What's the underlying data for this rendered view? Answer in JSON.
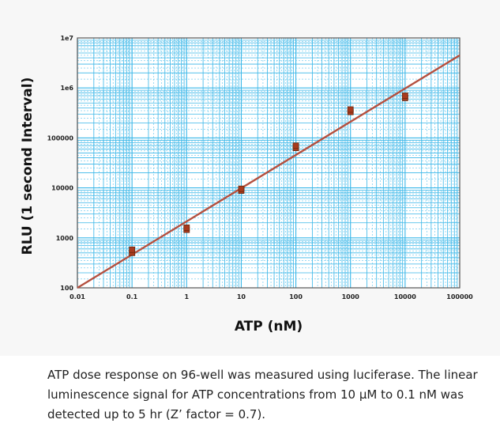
{
  "chart_data": {
    "type": "scatter",
    "xscale": "log",
    "yscale": "log",
    "xlim": [
      0.01,
      100000
    ],
    "ylim": [
      100,
      10000000
    ],
    "xlabel": "ATP (nM)",
    "ylabel": "RLU (1 second Interval)",
    "x_ticks": [
      "0.01",
      "0.1",
      "1",
      "10",
      "100",
      "1000",
      "10000",
      "100000"
    ],
    "y_ticks": [
      "100",
      "1000",
      "10000",
      "100000",
      "1e6",
      "1e7"
    ],
    "grid": true,
    "colors": {
      "grid": "#38b6e8",
      "line": "#b5503f",
      "marker": "#a83a1e",
      "background": "#ffffff"
    },
    "points": [
      {
        "x": 0.1,
        "y": 500
      },
      {
        "x": 0.1,
        "y": 580
      },
      {
        "x": 1,
        "y": 1450
      },
      {
        "x": 1,
        "y": 1600
      },
      {
        "x": 10,
        "y": 8800
      },
      {
        "x": 10,
        "y": 9600
      },
      {
        "x": 100,
        "y": 63000
      },
      {
        "x": 100,
        "y": 70000
      },
      {
        "x": 1000,
        "y": 330000
      },
      {
        "x": 1000,
        "y": 370000
      },
      {
        "x": 10000,
        "y": 630000
      },
      {
        "x": 10000,
        "y": 700000
      }
    ],
    "fit_line": {
      "x": [
        0.01,
        100000
      ],
      "y": [
        100,
        4500000
      ]
    }
  },
  "caption": "ATP dose response on 96-well was measured using luciferase. The linear luminescence signal for ATP concentrations from 10 µM to 0.1 nM was detected up to 5 hr (Z’ factor = 0.7)."
}
